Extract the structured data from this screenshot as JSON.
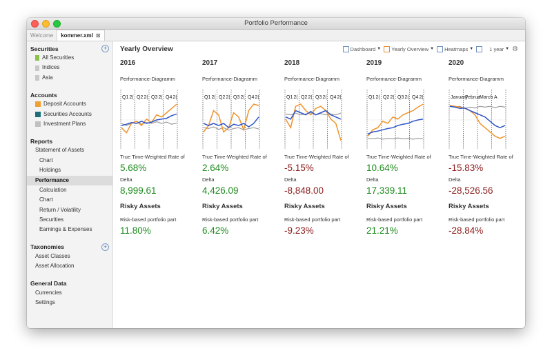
{
  "window": {
    "title": "Portfolio Performance"
  },
  "tabs": [
    {
      "label": "Welcome"
    },
    {
      "label": "kommer.xml",
      "close": "⊠"
    }
  ],
  "sidebar": {
    "securities": {
      "title": "Securities",
      "items": [
        {
          "label": "All Securities",
          "color": "#8bc34a"
        },
        {
          "label": "Indices",
          "color": "#c8c8c8"
        },
        {
          "label": "Asia",
          "color": "#c8c8c8"
        }
      ]
    },
    "accounts": {
      "title": "Accounts",
      "items": [
        {
          "label": "Deposit Accounts",
          "color": "#f0a030"
        },
        {
          "label": "Securities Accounts",
          "color": "#1f6f7a"
        },
        {
          "label": "Investment Plans",
          "color": "#c0c0c0"
        }
      ]
    },
    "reports": {
      "title": "Reports",
      "items": [
        {
          "label": "Statement of Assets",
          "level": 1
        },
        {
          "label": "Chart",
          "level": 2
        },
        {
          "label": "Holdings",
          "level": 2
        },
        {
          "label": "Performance",
          "level": 1,
          "selected": true
        },
        {
          "label": "Calculation",
          "level": 2
        },
        {
          "label": "Chart",
          "level": 2
        },
        {
          "label": "Return / Volatility",
          "level": 2
        },
        {
          "label": "Securities",
          "level": 2
        },
        {
          "label": "Earnings & Expenses",
          "level": 2
        }
      ]
    },
    "taxonomies": {
      "title": "Taxonomies",
      "items": [
        {
          "label": "Asset Classes"
        },
        {
          "label": "Asset Allocation"
        }
      ]
    },
    "general": {
      "title": "General Data",
      "items": [
        {
          "label": "Currencies"
        },
        {
          "label": "Settings"
        }
      ]
    }
  },
  "main": {
    "title": "Yearly Overview",
    "toolbar": {
      "dashboard": "Dashboard",
      "yearly": "Yearly Overview",
      "heatmaps": "Heatmaps",
      "period": "1 year"
    },
    "chart_label": "Performance-Diagramm",
    "twr_label": "True Time-Weighted Rate of",
    "delta_label": "Delta",
    "risky_label": "Risky Assets",
    "risk_part_label": "Risk-based portfolio part",
    "columns": [
      {
        "year": "2016",
        "twr": "5.68%",
        "twr_sign": "pos",
        "delta": "8,999.61",
        "delta_sign": "pos",
        "risk": "11.80%",
        "risk_sign": "pos",
        "quarters": [
          "Q1",
          "2(",
          "Q2",
          "2(",
          "Q3",
          "2(",
          "Q4",
          "2("
        ]
      },
      {
        "year": "2017",
        "twr": "2.64%",
        "twr_sign": "pos",
        "delta": "4,426.09",
        "delta_sign": "pos",
        "risk": "6.42%",
        "risk_sign": "pos",
        "quarters": [
          "Q1",
          "2(",
          "Q2",
          "2(",
          "Q3",
          "2(",
          "Q4",
          "2("
        ]
      },
      {
        "year": "2018",
        "twr": "-5.15%",
        "twr_sign": "neg",
        "delta": "-8,848.00",
        "delta_sign": "neg",
        "risk": "-9.23%",
        "risk_sign": "neg",
        "quarters": [
          "Q1",
          "2(",
          "Q2",
          "2(",
          "Q3",
          "2(",
          "Q4",
          "2("
        ]
      },
      {
        "year": "2019",
        "twr": "10.64%",
        "twr_sign": "pos",
        "delta": "17,339.11",
        "delta_sign": "pos",
        "risk": "21.21%",
        "risk_sign": "pos",
        "quarters": [
          "Q1",
          "2(",
          "Q2",
          "2(",
          "Q3",
          "2(",
          "Q4",
          "2("
        ]
      },
      {
        "year": "2020",
        "twr": "-15.83%",
        "twr_sign": "neg",
        "delta": "-28,526.56",
        "delta_sign": "neg",
        "risk": "-28.84%",
        "risk_sign": "neg",
        "quarters": [
          "January",
          "Februa",
          "March",
          "A"
        ]
      }
    ]
  },
  "colors": {
    "positive": "#1d8a1d",
    "negative": "#8b1a1a",
    "series_portfolio": "#2f55c8",
    "series_benchmark": "#f0932b",
    "series_delta": "#9a9a9a"
  }
}
